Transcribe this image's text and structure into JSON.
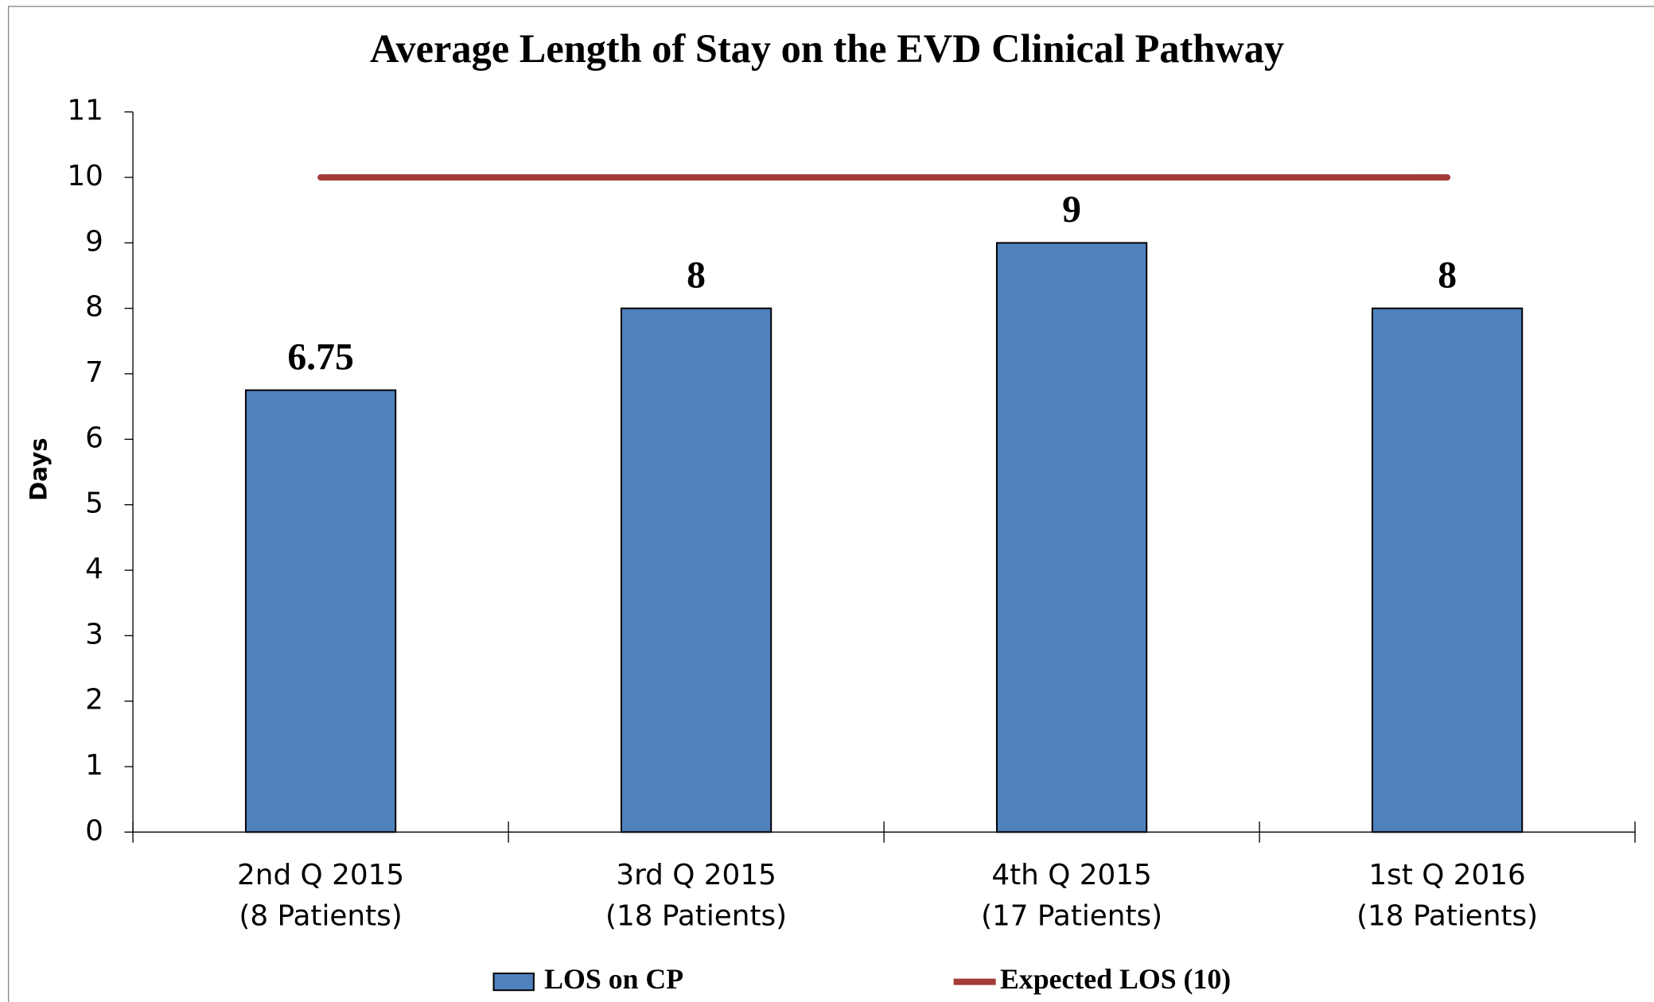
{
  "chart_data": {
    "type": "bar",
    "title": "Average Length of Stay on the EVD Clinical Pathway",
    "y_label": "Days",
    "categories": [
      [
        "2nd Q 2015",
        "(8 Patients)"
      ],
      [
        "3rd Q 2015",
        "(18 Patients)"
      ],
      [
        "4th Q 2015",
        "(17 Patients)"
      ],
      [
        "1st Q 2016",
        "(18 Patients)"
      ]
    ],
    "series": [
      {
        "name": "LOS on CP",
        "type": "bar",
        "color": "#4f81bd",
        "values": [
          6.75,
          8,
          9,
          8
        ]
      },
      {
        "name": "Expected LOS (10)",
        "type": "line",
        "color": "#a33b36",
        "values": [
          10,
          10,
          10,
          10
        ]
      }
    ],
    "ylim": [
      0,
      11
    ],
    "yticks": [
      0,
      1,
      2,
      3,
      4,
      5,
      6,
      7,
      8,
      9,
      10,
      11
    ],
    "grid": false,
    "legend": "bottom"
  }
}
